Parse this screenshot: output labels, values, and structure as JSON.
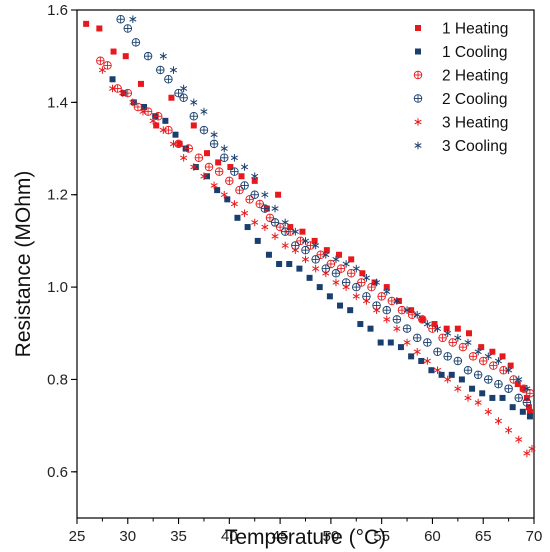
{
  "chart_data": {
    "type": "scatter",
    "title": "",
    "xlabel": "Temperature (°C)",
    "ylabel": "Resistance (MOhm)",
    "xlim": [
      25,
      70
    ],
    "ylim": [
      0.5,
      1.6
    ],
    "xticks": [
      "25",
      "30",
      "35",
      "40",
      "45",
      "50",
      "55",
      "60",
      "65",
      "70"
    ],
    "yticks": [
      "0.6",
      "0.8",
      "1.0",
      "1.2",
      "1.4",
      "1.6"
    ],
    "grid": false,
    "legend_position": "top-right",
    "series": [
      {
        "name": "1 Heating",
        "marker": "square-filled",
        "color": "#e8191c",
        "points": [
          [
            25.9,
            1.57
          ],
          [
            27.2,
            1.56
          ],
          [
            28.6,
            1.51
          ],
          [
            29.8,
            1.5
          ],
          [
            31.3,
            1.44
          ],
          [
            32.8,
            1.35
          ],
          [
            34.3,
            1.41
          ],
          [
            35.1,
            1.31
          ],
          [
            36.5,
            1.35
          ],
          [
            37.8,
            1.29
          ],
          [
            38.9,
            1.27
          ],
          [
            40.1,
            1.26
          ],
          [
            41.2,
            1.24
          ],
          [
            42.5,
            1.23
          ],
          [
            43.7,
            1.17
          ],
          [
            44.8,
            1.2
          ],
          [
            46.0,
            1.13
          ],
          [
            47.2,
            1.12
          ],
          [
            48.4,
            1.1
          ],
          [
            49.6,
            1.08
          ],
          [
            50.8,
            1.07
          ],
          [
            52.0,
            1.06
          ],
          [
            53.1,
            1.03
          ],
          [
            54.3,
            1.01
          ],
          [
            55.5,
            1.0
          ],
          [
            56.7,
            0.97
          ],
          [
            57.9,
            0.95
          ],
          [
            59.0,
            0.93
          ],
          [
            60.2,
            0.92
          ],
          [
            61.4,
            0.91
          ],
          [
            62.5,
            0.91
          ],
          [
            63.6,
            0.9
          ],
          [
            64.8,
            0.87
          ],
          [
            65.9,
            0.86
          ],
          [
            66.9,
            0.85
          ],
          [
            67.7,
            0.83
          ],
          [
            68.4,
            0.79
          ],
          [
            68.9,
            0.78
          ],
          [
            69.3,
            0.76
          ],
          [
            69.5,
            0.74
          ],
          [
            69.6,
            0.73
          ]
        ]
      },
      {
        "name": "1 Cooling",
        "marker": "square-filled",
        "color": "#1a3f6e",
        "points": [
          [
            28.5,
            1.45
          ],
          [
            29.6,
            1.42
          ],
          [
            30.6,
            1.4
          ],
          [
            31.6,
            1.39
          ],
          [
            32.7,
            1.37
          ],
          [
            33.7,
            1.36
          ],
          [
            34.7,
            1.33
          ],
          [
            35.7,
            1.3
          ],
          [
            36.7,
            1.26
          ],
          [
            37.8,
            1.24
          ],
          [
            38.8,
            1.21
          ],
          [
            39.8,
            1.19
          ],
          [
            40.8,
            1.15
          ],
          [
            41.8,
            1.13
          ],
          [
            42.8,
            1.1
          ],
          [
            43.9,
            1.07
          ],
          [
            44.9,
            1.05
          ],
          [
            45.9,
            1.05
          ],
          [
            46.9,
            1.04
          ],
          [
            47.9,
            1.02
          ],
          [
            48.9,
            1.0
          ],
          [
            49.9,
            0.98
          ],
          [
            50.9,
            0.96
          ],
          [
            51.9,
            0.95
          ],
          [
            52.9,
            0.92
          ],
          [
            53.9,
            0.91
          ],
          [
            54.9,
            0.88
          ],
          [
            55.9,
            0.88
          ],
          [
            56.9,
            0.87
          ],
          [
            57.9,
            0.85
          ],
          [
            58.9,
            0.84
          ],
          [
            59.9,
            0.82
          ],
          [
            60.9,
            0.81
          ],
          [
            61.9,
            0.81
          ],
          [
            62.9,
            0.8
          ],
          [
            63.9,
            0.78
          ],
          [
            64.9,
            0.77
          ],
          [
            65.9,
            0.76
          ],
          [
            66.9,
            0.76
          ],
          [
            67.9,
            0.74
          ],
          [
            68.9,
            0.73
          ],
          [
            69.6,
            0.72
          ]
        ]
      },
      {
        "name": "2 Heating",
        "marker": "circle-plus",
        "color": "#e8191c",
        "points": [
          [
            27.3,
            1.49
          ],
          [
            28.0,
            1.48
          ],
          [
            29.0,
            1.43
          ],
          [
            30.0,
            1.42
          ],
          [
            31.0,
            1.39
          ],
          [
            32.0,
            1.38
          ],
          [
            33.0,
            1.37
          ],
          [
            34.0,
            1.34
          ],
          [
            35.0,
            1.31
          ],
          [
            36.0,
            1.3
          ],
          [
            37.0,
            1.28
          ],
          [
            38.0,
            1.26
          ],
          [
            39.0,
            1.25
          ],
          [
            40.0,
            1.23
          ],
          [
            41.0,
            1.21
          ],
          [
            42.0,
            1.19
          ],
          [
            43.0,
            1.18
          ],
          [
            44.0,
            1.15
          ],
          [
            45.0,
            1.13
          ],
          [
            46.0,
            1.12
          ],
          [
            47.0,
            1.1
          ],
          [
            48.0,
            1.09
          ],
          [
            49.0,
            1.07
          ],
          [
            50.0,
            1.05
          ],
          [
            51.0,
            1.04
          ],
          [
            52.0,
            1.03
          ],
          [
            53.0,
            1.01
          ],
          [
            54.0,
            1.0
          ],
          [
            55.0,
            0.98
          ],
          [
            56.0,
            0.97
          ],
          [
            57.0,
            0.95
          ],
          [
            58.0,
            0.94
          ],
          [
            59.0,
            0.93
          ],
          [
            60.0,
            0.91
          ],
          [
            61.0,
            0.89
          ],
          [
            62.0,
            0.88
          ],
          [
            63.0,
            0.87
          ],
          [
            64.0,
            0.85
          ],
          [
            65.0,
            0.84
          ],
          [
            66.0,
            0.83
          ],
          [
            67.0,
            0.82
          ],
          [
            68.0,
            0.8
          ],
          [
            69.0,
            0.78
          ],
          [
            69.6,
            0.77
          ]
        ]
      },
      {
        "name": "2 Cooling",
        "marker": "circle-plus",
        "color": "#1a3f6e",
        "points": [
          [
            29.3,
            1.58
          ],
          [
            30.0,
            1.56
          ],
          [
            30.8,
            1.53
          ],
          [
            32.0,
            1.5
          ],
          [
            33.2,
            1.47
          ],
          [
            34.0,
            1.45
          ],
          [
            35.0,
            1.42
          ],
          [
            35.5,
            1.41
          ],
          [
            36.5,
            1.37
          ],
          [
            37.5,
            1.34
          ],
          [
            38.5,
            1.31
          ],
          [
            39.5,
            1.28
          ],
          [
            40.5,
            1.25
          ],
          [
            41.5,
            1.22
          ],
          [
            42.5,
            1.2
          ],
          [
            43.5,
            1.17
          ],
          [
            44.5,
            1.14
          ],
          [
            45.5,
            1.12
          ],
          [
            46.5,
            1.09
          ],
          [
            47.5,
            1.08
          ],
          [
            48.5,
            1.06
          ],
          [
            49.5,
            1.04
          ],
          [
            50.5,
            1.03
          ],
          [
            51.5,
            1.01
          ],
          [
            52.5,
            1.0
          ],
          [
            53.5,
            0.98
          ],
          [
            54.5,
            0.96
          ],
          [
            55.5,
            0.95
          ],
          [
            56.5,
            0.93
          ],
          [
            57.5,
            0.91
          ],
          [
            58.5,
            0.89
          ],
          [
            59.5,
            0.88
          ],
          [
            60.5,
            0.86
          ],
          [
            61.5,
            0.85
          ],
          [
            62.5,
            0.84
          ],
          [
            63.5,
            0.82
          ],
          [
            64.5,
            0.81
          ],
          [
            65.5,
            0.8
          ],
          [
            66.5,
            0.79
          ],
          [
            67.5,
            0.78
          ],
          [
            68.5,
            0.76
          ],
          [
            69.3,
            0.75
          ]
        ]
      },
      {
        "name": "3 Heating",
        "marker": "asterisk",
        "color": "#e8191c",
        "points": [
          [
            27.5,
            1.47
          ],
          [
            28.5,
            1.43
          ],
          [
            29.5,
            1.42
          ],
          [
            30.5,
            1.4
          ],
          [
            31.5,
            1.38
          ],
          [
            32.5,
            1.36
          ],
          [
            33.5,
            1.34
          ],
          [
            34.5,
            1.31
          ],
          [
            35.5,
            1.28
          ],
          [
            36.5,
            1.26
          ],
          [
            37.5,
            1.24
          ],
          [
            38.5,
            1.22
          ],
          [
            39.5,
            1.2
          ],
          [
            40.5,
            1.18
          ],
          [
            41.5,
            1.16
          ],
          [
            42.5,
            1.14
          ],
          [
            43.5,
            1.13
          ],
          [
            44.5,
            1.11
          ],
          [
            45.5,
            1.09
          ],
          [
            46.5,
            1.08
          ],
          [
            47.5,
            1.06
          ],
          [
            48.5,
            1.04
          ],
          [
            49.5,
            1.03
          ],
          [
            50.5,
            1.01
          ],
          [
            51.5,
            1.0
          ],
          [
            52.5,
            0.98
          ],
          [
            53.5,
            0.97
          ],
          [
            54.5,
            0.95
          ],
          [
            55.5,
            0.93
          ],
          [
            56.5,
            0.91
          ],
          [
            57.5,
            0.88
          ],
          [
            58.5,
            0.86
          ],
          [
            59.5,
            0.84
          ],
          [
            60.5,
            0.82
          ],
          [
            61.5,
            0.8
          ],
          [
            62.5,
            0.78
          ],
          [
            63.5,
            0.76
          ],
          [
            64.5,
            0.75
          ],
          [
            65.5,
            0.73
          ],
          [
            66.5,
            0.71
          ],
          [
            67.5,
            0.69
          ],
          [
            68.5,
            0.67
          ],
          [
            69.3,
            0.64
          ],
          [
            69.8,
            0.65
          ]
        ]
      },
      {
        "name": "3 Cooling",
        "marker": "asterisk",
        "color": "#1a3f6e",
        "points": [
          [
            30.5,
            1.58
          ],
          [
            33.5,
            1.5
          ],
          [
            34.5,
            1.47
          ],
          [
            35.5,
            1.43
          ],
          [
            36.5,
            1.4
          ],
          [
            37.5,
            1.38
          ],
          [
            38.5,
            1.33
          ],
          [
            39.5,
            1.3
          ],
          [
            40.5,
            1.28
          ],
          [
            41.5,
            1.26
          ],
          [
            42.5,
            1.24
          ],
          [
            43.5,
            1.2
          ],
          [
            44.5,
            1.17
          ],
          [
            45.5,
            1.14
          ],
          [
            46.5,
            1.12
          ],
          [
            47.5,
            1.1
          ],
          [
            48.5,
            1.09
          ],
          [
            49.5,
            1.07
          ],
          [
            50.5,
            1.06
          ],
          [
            51.5,
            1.05
          ],
          [
            52.5,
            1.04
          ],
          [
            53.5,
            1.02
          ],
          [
            54.5,
            1.01
          ],
          [
            55.5,
            0.99
          ],
          [
            56.5,
            0.97
          ],
          [
            57.5,
            0.95
          ],
          [
            58.5,
            0.94
          ],
          [
            59.5,
            0.92
          ],
          [
            60.5,
            0.91
          ],
          [
            61.5,
            0.9
          ],
          [
            62.5,
            0.89
          ],
          [
            63.5,
            0.88
          ],
          [
            64.5,
            0.86
          ],
          [
            65.5,
            0.85
          ],
          [
            66.5,
            0.84
          ],
          [
            67.5,
            0.82
          ],
          [
            68.5,
            0.8
          ],
          [
            69.3,
            0.78
          ]
        ]
      }
    ]
  }
}
